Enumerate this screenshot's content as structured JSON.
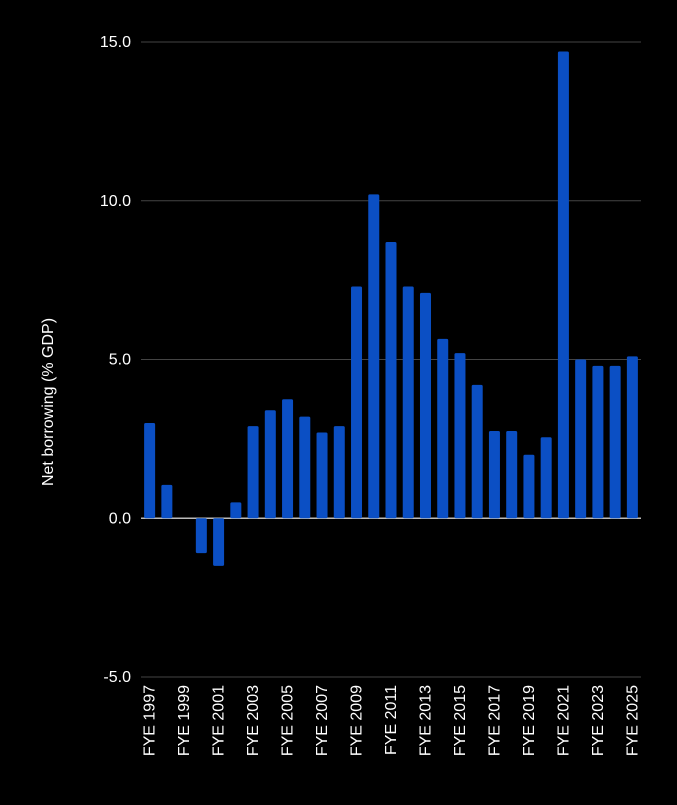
{
  "chart_data": {
    "type": "bar",
    "title": "",
    "xlabel": "",
    "ylabel": "Net borrowing (% GDP)",
    "ylim": [
      -5,
      15
    ],
    "yticks": [
      "15.0",
      "10.0",
      "5.0",
      "0.0",
      "-5.0"
    ],
    "ytick_values": [
      15,
      10,
      5,
      0,
      -5
    ],
    "grid": true,
    "bar_color": "#0b4fc4",
    "categories": [
      "FYE 1997",
      "FYE 1998",
      "FYE 1999",
      "FYE 2000",
      "FYE 2001",
      "FYE 2002",
      "FYE 2003",
      "FYE 2004",
      "FYE 2005",
      "FYE 2006",
      "FYE 2007",
      "FYE 2008",
      "FYE 2009",
      "FYE 2010",
      "FYE 2011",
      "FYE 2012",
      "FYE 2013",
      "FYE 2014",
      "FYE 2015",
      "FYE 2016",
      "FYE 2017",
      "FYE 2018",
      "FYE 2019",
      "FYE 2020",
      "FYE 2021",
      "FYE 2022",
      "FYE 2023",
      "FYE 2024",
      "FYE 2025"
    ],
    "xtick_labels": [
      "FYE 1997",
      "FYE 1999",
      "FYE 2001",
      "FYE 2003",
      "FYE 2005",
      "FYE 2007",
      "FYE 2009",
      "FYE 2011",
      "FYE 2013",
      "FYE 2015",
      "FYE 2017",
      "FYE 2019",
      "FYE 2021",
      "FYE 2023",
      "FYE 2025"
    ],
    "values": [
      3.0,
      1.05,
      0.0,
      -1.1,
      -1.5,
      0.5,
      2.9,
      3.4,
      3.75,
      3.2,
      2.7,
      2.9,
      7.3,
      10.2,
      8.7,
      7.3,
      7.1,
      5.65,
      5.2,
      4.2,
      2.75,
      2.75,
      2.0,
      2.55,
      14.7,
      5.0,
      4.8,
      4.8,
      5.1
    ]
  }
}
